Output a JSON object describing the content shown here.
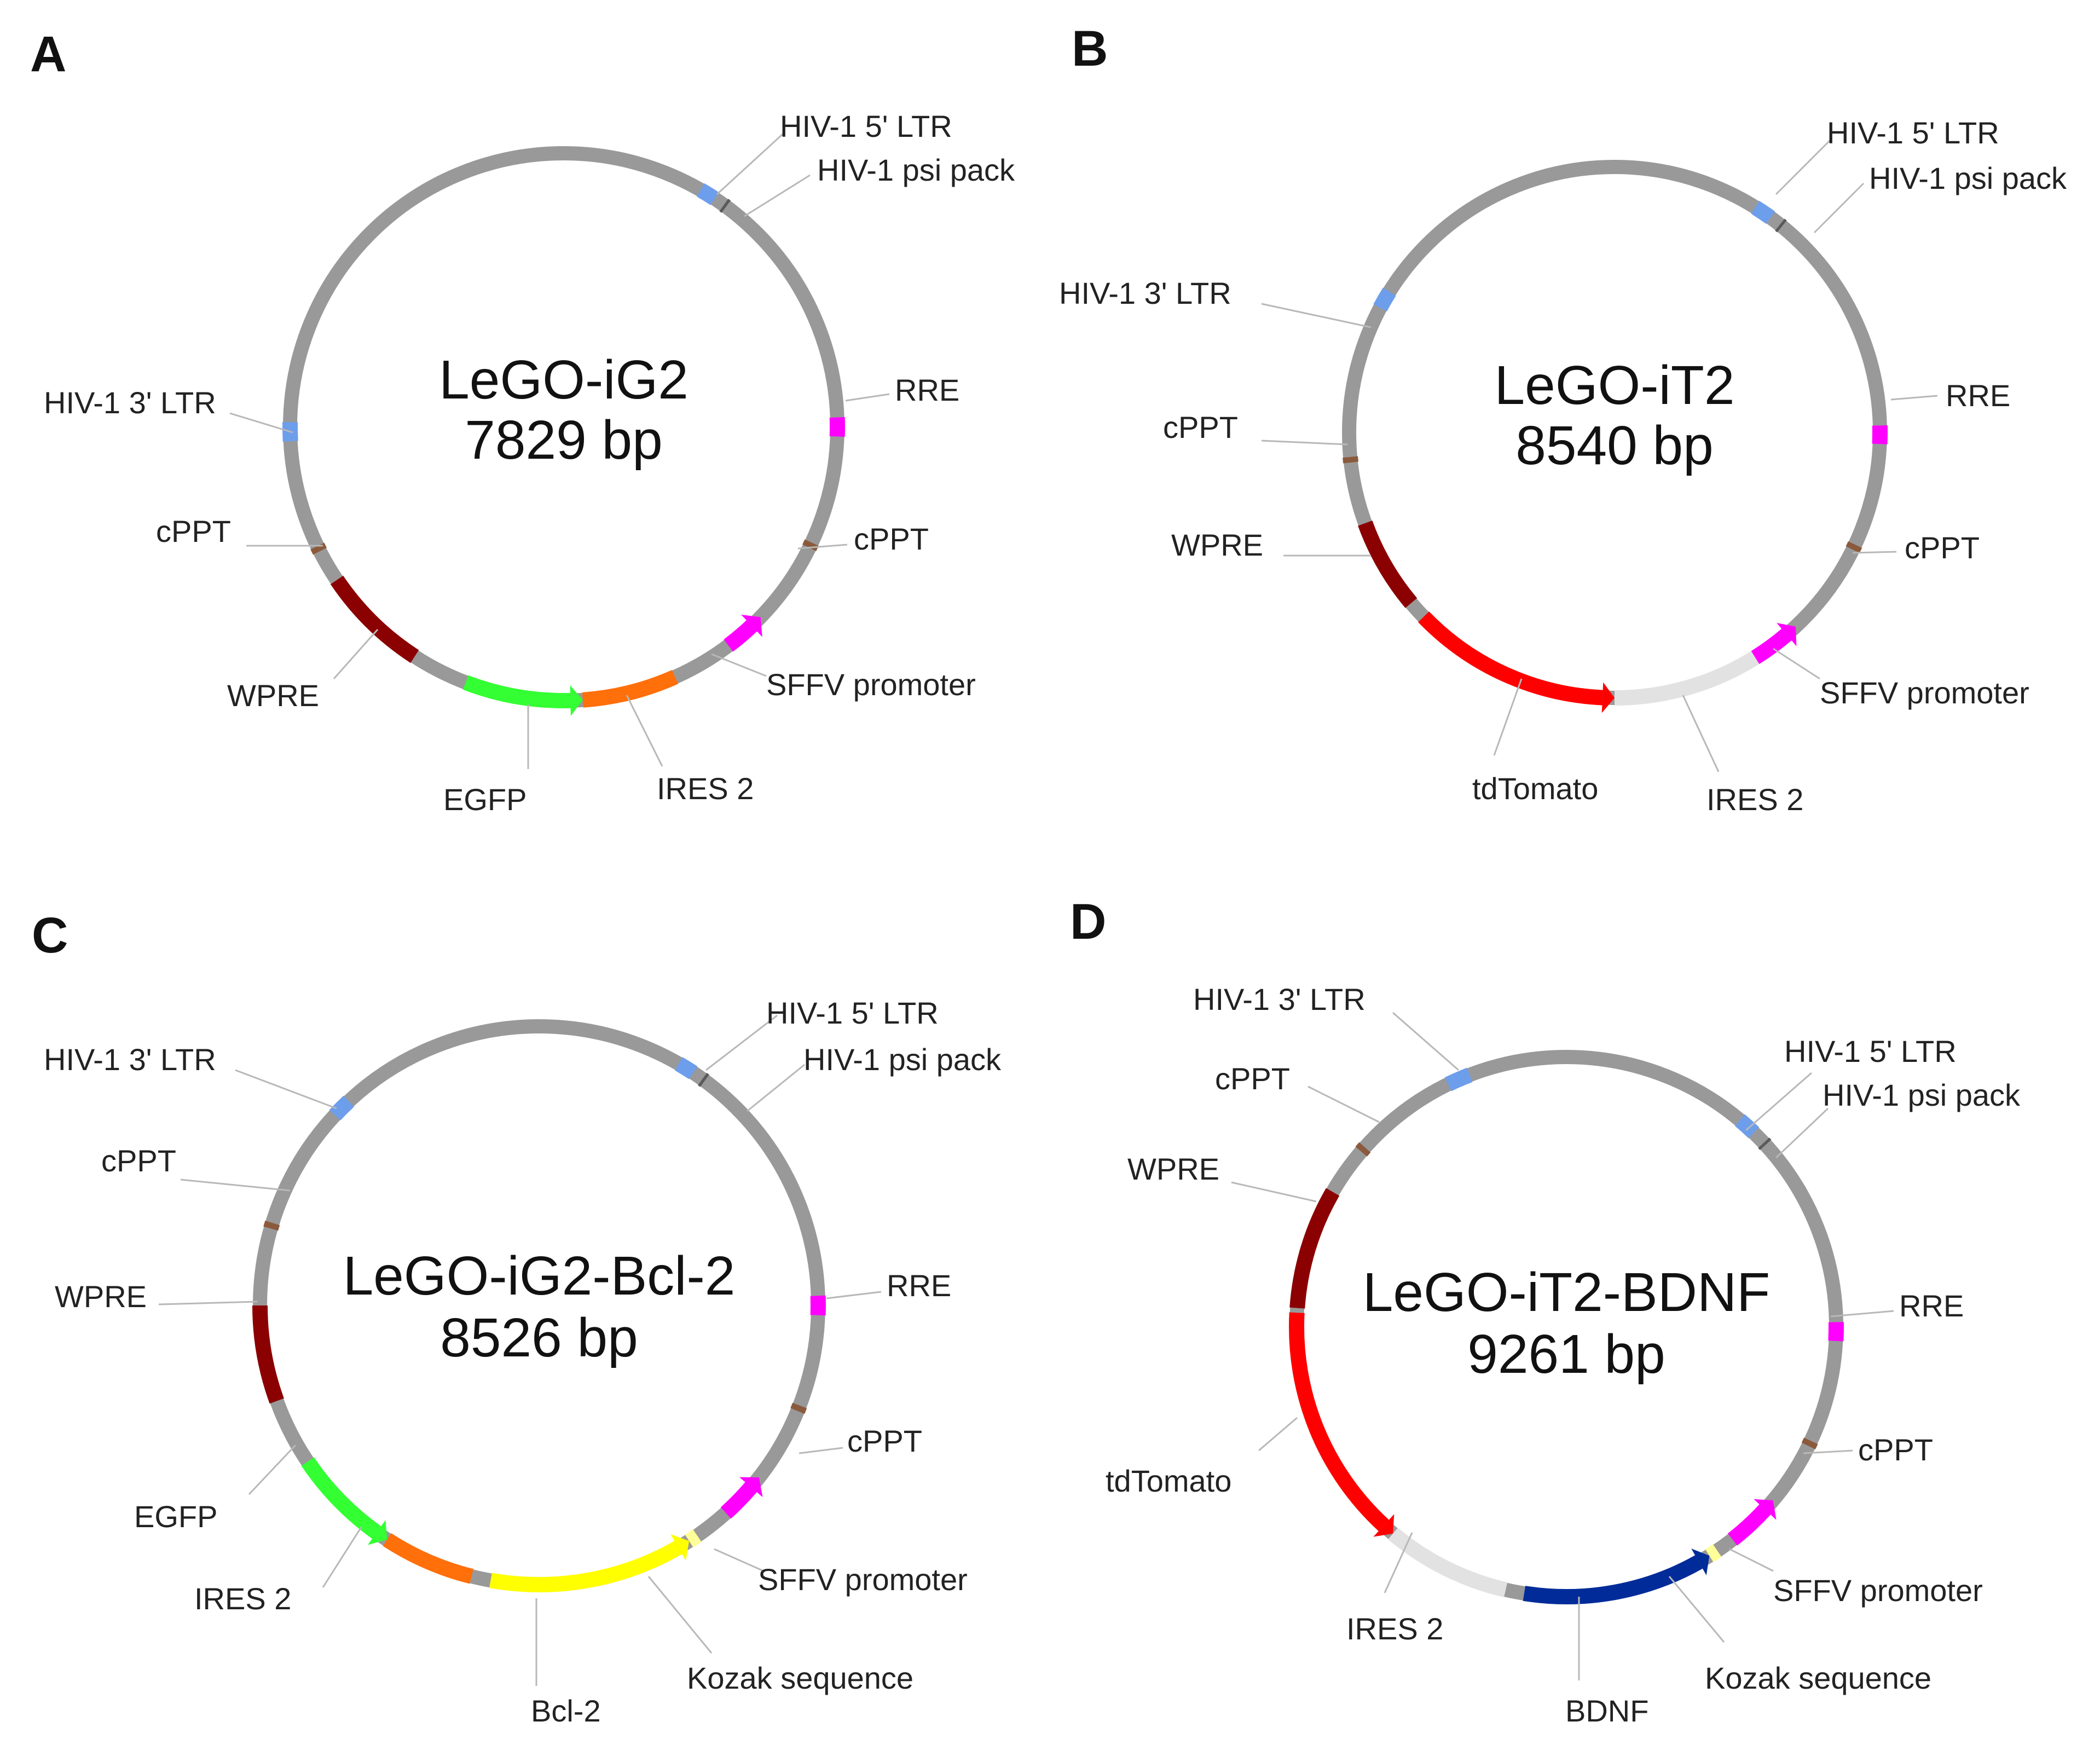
{
  "colors": {
    "backbone": "#999999",
    "ltr": "#6d9eeb",
    "psi": "#5a5a5a",
    "rre": "#ff00ff",
    "cppt": "#8b5a3c",
    "sffv": "#ff00ff",
    "ires": "#ff6f0a",
    "ires_light": "#e2e2e2",
    "egfp": "#33ff33",
    "tdtomato": "#ff0000",
    "wpre": "#8b0000",
    "bcl2": "#ffff00",
    "bdnf": "#002b99",
    "kozak": "#ffff99"
  },
  "panels": [
    {
      "letter": "A",
      "name": "LeGO-iG2",
      "size": "7829 bp",
      "features": [
        {
          "label": "HIV-1 5' LTR",
          "start": 30.0,
          "end": 33.5,
          "color": "ltr"
        },
        {
          "label": "HIV-1 psi pack",
          "start": 35.8,
          "end": 36.4,
          "color": "psi"
        },
        {
          "label": "RRE",
          "start": 88.0,
          "end": 92.0,
          "color": "rre"
        },
        {
          "label": "cPPT",
          "start": 115.0,
          "end": 116.2,
          "color": "cppt"
        },
        {
          "label": "SFFV promoter",
          "start": 134.0,
          "end": 143.0,
          "color": "sffv",
          "dir": "ccw"
        },
        {
          "label": "IRES 2",
          "start": 156.0,
          "end": 176.0,
          "color": "ires"
        },
        {
          "label": "EGFP",
          "start": 176.0,
          "end": 201.0,
          "color": "egfp",
          "dir": "ccw"
        },
        {
          "label": "WPRE",
          "start": 213.0,
          "end": 236.0,
          "color": "wpre"
        },
        {
          "label": "cPPT",
          "start": 243.0,
          "end": 244.2,
          "color": "cppt"
        },
        {
          "label": "HIV-1 3' LTR",
          "start": 267.0,
          "end": 271.0,
          "color": "ltr"
        }
      ]
    },
    {
      "letter": "B",
      "name": "LeGO-iT2",
      "size": "8540 bp",
      "features": [
        {
          "label": "HIV-1 5' LTR",
          "start": 32.0,
          "end": 36.0,
          "color": "ltr"
        },
        {
          "label": "HIV-1 psi pack",
          "start": 38.5,
          "end": 39.1,
          "color": "psi"
        },
        {
          "label": "RRE",
          "start": 88.5,
          "end": 92.5,
          "color": "rre"
        },
        {
          "label": "cPPT",
          "start": 115.0,
          "end": 116.2,
          "color": "cppt"
        },
        {
          "label": "SFFV promoter",
          "start": 137.0,
          "end": 148.0,
          "color": "sffv",
          "dir": "ccw"
        },
        {
          "label": "IRES 2",
          "start": 148.0,
          "end": 180.0,
          "color": "ires_light"
        },
        {
          "label": "tdTomato",
          "start": 180.0,
          "end": 226.0,
          "color": "tdtomato",
          "dir": "ccw"
        },
        {
          "label": "WPRE",
          "start": 230.0,
          "end": 250.0,
          "color": "wpre"
        },
        {
          "label": "cPPT",
          "start": 263.5,
          "end": 264.7,
          "color": "cppt"
        },
        {
          "label": "HIV-1 3' LTR",
          "start": 298.0,
          "end": 302.0,
          "color": "ltr"
        }
      ]
    },
    {
      "letter": "C",
      "name": "LeGO-iG2-Bcl-2",
      "size": "8526 bp",
      "features": [
        {
          "label": "HIV-1 5' LTR",
          "start": 30.0,
          "end": 33.5,
          "color": "ltr"
        },
        {
          "label": "HIV-1 psi pack",
          "start": 35.8,
          "end": 36.4,
          "color": "psi"
        },
        {
          "label": "RRE",
          "start": 88.0,
          "end": 92.0,
          "color": "rre"
        },
        {
          "label": "cPPT",
          "start": 111.0,
          "end": 112.2,
          "color": "cppt"
        },
        {
          "label": "SFFV promoter",
          "start": 128.0,
          "end": 138.0,
          "color": "sffv",
          "dir": "ccw"
        },
        {
          "label": "Kozak sequence",
          "start": 145.5,
          "end": 147.5,
          "color": "kozak"
        },
        {
          "label": "Bcl-2",
          "start": 147.5,
          "end": 190.0,
          "color": "bcl2",
          "dir": "ccw"
        },
        {
          "label": "IRES 2",
          "start": 194.0,
          "end": 213.0,
          "color": "ires"
        },
        {
          "label": "EGFP",
          "start": 213.0,
          "end": 236.0,
          "color": "egfp",
          "dir": "ccw"
        },
        {
          "label": "WPRE",
          "start": 250.0,
          "end": 270.0,
          "color": "wpre"
        },
        {
          "label": "cPPT",
          "start": 286.0,
          "end": 287.2,
          "color": "cppt"
        },
        {
          "label": "HIV-1 3' LTR",
          "start": 313.0,
          "end": 317.0,
          "color": "ltr"
        }
      ]
    },
    {
      "letter": "D",
      "name": "LeGO-iT2-BDNF",
      "size": "9261 bp",
      "features": [
        {
          "label": "HIV-1 5' LTR",
          "start": 40.0,
          "end": 44.0,
          "color": "ltr"
        },
        {
          "label": "HIV-1 psi pack",
          "start": 47.0,
          "end": 47.6,
          "color": "psi"
        },
        {
          "label": "RRE",
          "start": 89.0,
          "end": 93.0,
          "color": "rre"
        },
        {
          "label": "cPPT",
          "start": 115.0,
          "end": 116.2,
          "color": "cppt"
        },
        {
          "label": "SFFV promoter",
          "start": 130.0,
          "end": 142.0,
          "color": "sffv",
          "dir": "ccw"
        },
        {
          "label": "Kozak sequence",
          "start": 146.0,
          "end": 148.0,
          "color": "kozak"
        },
        {
          "label": "BDNF",
          "start": 148.0,
          "end": 189.0,
          "color": "bdnf",
          "dir": "ccw"
        },
        {
          "label": "IRES 2",
          "start": 193.0,
          "end": 220.0,
          "color": "ires_light"
        },
        {
          "label": "tdTomato",
          "start": 220.0,
          "end": 273.0,
          "color": "tdtomato",
          "dir": "ccw"
        },
        {
          "label": "WPRE",
          "start": 274.0,
          "end": 300.0,
          "color": "wpre"
        },
        {
          "label": "cPPT",
          "start": 310.5,
          "end": 311.7,
          "color": "cppt"
        },
        {
          "label": "HIV-1 3' LTR",
          "start": 334.0,
          "end": 339.0,
          "color": "ltr"
        }
      ]
    }
  ]
}
